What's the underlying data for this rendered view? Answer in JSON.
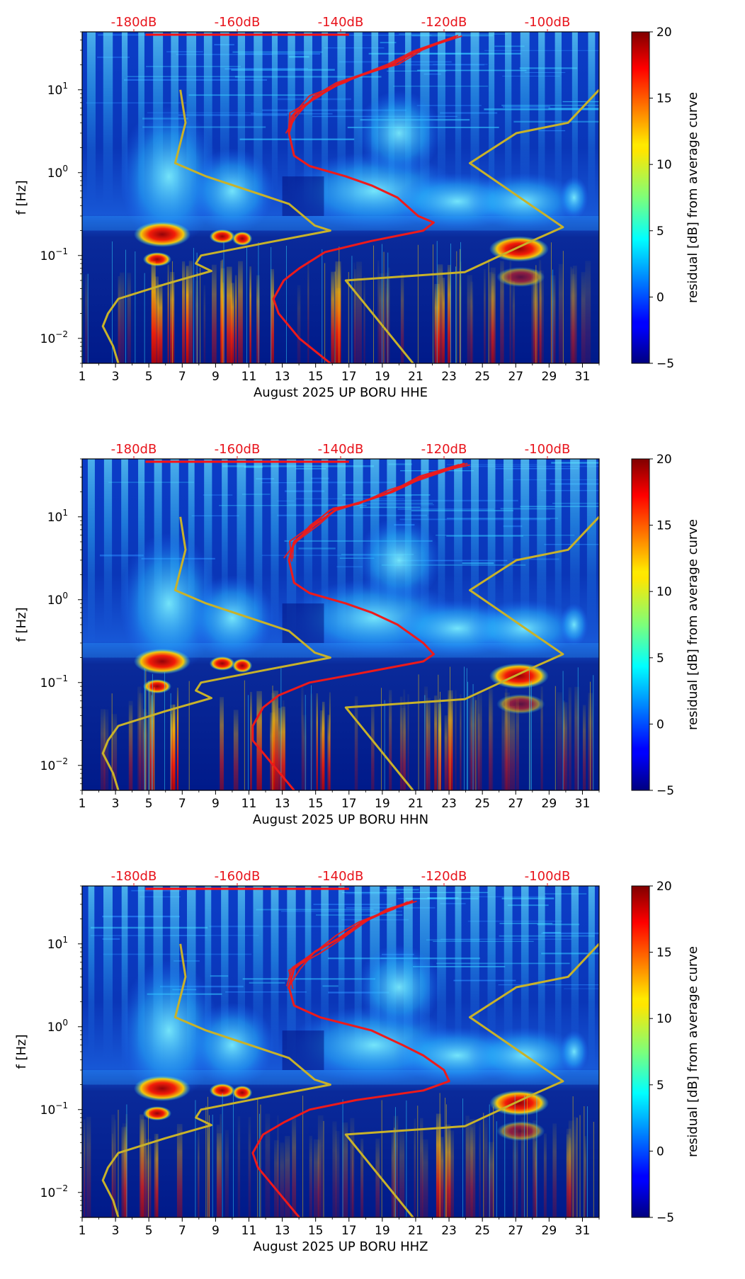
{
  "chart_data": [
    {
      "type": "heatmap",
      "title": "",
      "xlabel": "August 2025 UP BORU  HHE",
      "ylabel": "f [Hz]",
      "x_ticks": [
        "1",
        "3",
        "5",
        "7",
        "9",
        "11",
        "13",
        "15",
        "17",
        "19",
        "21",
        "23",
        "25",
        "27",
        "29",
        "31"
      ],
      "x_tick_values": [
        1,
        3,
        5,
        7,
        9,
        11,
        13,
        15,
        17,
        19,
        21,
        23,
        25,
        27,
        29,
        31
      ],
      "xlim": [
        1,
        32
      ],
      "y_scale": "log",
      "ylim": [
        0.005,
        50
      ],
      "y_ticks": [
        {
          "base": "10",
          "exp": "1",
          "value": 10
        },
        {
          "base": "10",
          "exp": "0",
          "value": 1
        },
        {
          "base": "10",
          "exp": "−1",
          "value": 0.1
        },
        {
          "base": "10",
          "exp": "−2",
          "value": 0.01
        }
      ],
      "top_db_ticks": [
        "-180dB",
        "-160dB",
        "-140dB",
        "-120dB",
        "-100dB"
      ],
      "top_db_values": [
        -180,
        -160,
        -140,
        -120,
        -100
      ],
      "top_db_range": [
        -190,
        -90
      ],
      "colorbar": {
        "label": "residual [dB] from average curve",
        "ticks": [
          "20",
          "15",
          "10",
          "5",
          "0",
          "−5"
        ],
        "tick_values": [
          20,
          15,
          10,
          5,
          0,
          -5
        ],
        "range": [
          -5,
          20
        ]
      },
      "red_curve_db": [
        [
          -117.7,
          44
        ],
        [
          -125,
          30
        ],
        [
          -130,
          20
        ],
        [
          -136,
          15
        ],
        [
          -140,
          12
        ],
        [
          -145,
          8
        ],
        [
          -149,
          5
        ],
        [
          -150,
          3
        ],
        [
          -149,
          1.6
        ],
        [
          -146,
          1.2
        ],
        [
          -139,
          0.9
        ],
        [
          -134,
          0.7
        ],
        [
          -129,
          0.5
        ],
        [
          -125,
          0.3
        ],
        [
          -122,
          0.25
        ],
        [
          -124,
          0.2
        ],
        [
          -134,
          0.15
        ],
        [
          -143,
          0.11
        ],
        [
          -148,
          0.07
        ],
        [
          -151,
          0.05
        ],
        [
          -153,
          0.03
        ],
        [
          -152,
          0.02
        ],
        [
          -148,
          0.01
        ],
        [
          -142,
          0.005
        ]
      ],
      "yellow_curve_db": [
        [
          -183,
          0.005
        ],
        [
          -184,
          0.008
        ],
        [
          -186,
          0.014
        ],
        [
          -185,
          0.02
        ],
        [
          -183,
          0.03
        ],
        [
          -174,
          0.045
        ],
        [
          -165,
          0.065
        ],
        [
          -168,
          0.08
        ],
        [
          -167,
          0.1
        ],
        [
          -155,
          0.14
        ],
        [
          -142,
          0.2
        ],
        [
          -145,
          0.23
        ],
        [
          -150,
          0.42
        ],
        [
          -166,
          0.9
        ],
        [
          -172,
          1.3
        ],
        [
          -170,
          4
        ],
        [
          -171,
          10
        ]
      ],
      "yellow_curve2_db": [
        [
          -126,
          0.005
        ],
        [
          -139,
          0.05
        ],
        [
          -116,
          0.063
        ],
        [
          -103,
          0.15
        ],
        [
          -97,
          0.22
        ],
        [
          -115,
          1.3
        ],
        [
          -106,
          3
        ],
        [
          -96,
          4
        ],
        [
          -90,
          10
        ]
      ]
    },
    {
      "type": "heatmap",
      "title": "",
      "xlabel": "August 2025 UP BORU  HHN",
      "ylabel": "f [Hz]",
      "x_ticks": [
        "1",
        "3",
        "5",
        "7",
        "9",
        "11",
        "13",
        "15",
        "17",
        "19",
        "21",
        "23",
        "25",
        "27",
        "29",
        "31"
      ],
      "x_tick_values": [
        1,
        3,
        5,
        7,
        9,
        11,
        13,
        15,
        17,
        19,
        21,
        23,
        25,
        27,
        29,
        31
      ],
      "xlim": [
        1,
        32
      ],
      "y_scale": "log",
      "ylim": [
        0.005,
        50
      ],
      "y_ticks": [
        {
          "base": "10",
          "exp": "1",
          "value": 10
        },
        {
          "base": "10",
          "exp": "0",
          "value": 1
        },
        {
          "base": "10",
          "exp": "−1",
          "value": 0.1
        },
        {
          "base": "10",
          "exp": "−2",
          "value": 0.01
        }
      ],
      "top_db_ticks": [
        "-180dB",
        "-160dB",
        "-140dB",
        "-120dB",
        "-100dB"
      ],
      "top_db_values": [
        -180,
        -160,
        -140,
        -120,
        -100
      ],
      "top_db_range": [
        -190,
        -90
      ],
      "colorbar": {
        "label": "residual [dB] from average curve",
        "ticks": [
          "20",
          "15",
          "10",
          "5",
          "0",
          "−5"
        ],
        "tick_values": [
          20,
          15,
          10,
          5,
          0,
          -5
        ],
        "range": [
          -5,
          20
        ]
      },
      "red_curve_db": [
        [
          -116,
          44
        ],
        [
          -124,
          30
        ],
        [
          -130,
          20
        ],
        [
          -136,
          15
        ],
        [
          -141,
          12
        ],
        [
          -145,
          8
        ],
        [
          -149,
          5
        ],
        [
          -150,
          3
        ],
        [
          -149,
          1.6
        ],
        [
          -146,
          1.2
        ],
        [
          -139,
          0.9
        ],
        [
          -134,
          0.7
        ],
        [
          -129,
          0.5
        ],
        [
          -124,
          0.3
        ],
        [
          -122,
          0.22
        ],
        [
          -124,
          0.18
        ],
        [
          -136,
          0.13
        ],
        [
          -146,
          0.1
        ],
        [
          -152,
          0.07
        ],
        [
          -155,
          0.05
        ],
        [
          -157,
          0.03
        ],
        [
          -157,
          0.02
        ],
        [
          -153,
          0.01
        ],
        [
          -149,
          0.005
        ]
      ],
      "yellow_curve_db": [
        [
          -183,
          0.005
        ],
        [
          -184,
          0.008
        ],
        [
          -186,
          0.014
        ],
        [
          -185,
          0.02
        ],
        [
          -183,
          0.03
        ],
        [
          -174,
          0.045
        ],
        [
          -165,
          0.065
        ],
        [
          -168,
          0.08
        ],
        [
          -167,
          0.1
        ],
        [
          -155,
          0.14
        ],
        [
          -142,
          0.2
        ],
        [
          -145,
          0.23
        ],
        [
          -150,
          0.42
        ],
        [
          -166,
          0.9
        ],
        [
          -172,
          1.3
        ],
        [
          -170,
          4
        ],
        [
          -171,
          10
        ]
      ],
      "yellow_curve2_db": [
        [
          -126,
          0.005
        ],
        [
          -139,
          0.05
        ],
        [
          -116,
          0.063
        ],
        [
          -103,
          0.15
        ],
        [
          -97,
          0.22
        ],
        [
          -115,
          1.3
        ],
        [
          -106,
          3
        ],
        [
          -96,
          4
        ],
        [
          -90,
          10
        ]
      ]
    },
    {
      "type": "heatmap",
      "title": "",
      "xlabel": "August 2025 UP BORU  HHZ",
      "ylabel": "f [Hz]",
      "x_ticks": [
        "1",
        "3",
        "5",
        "7",
        "9",
        "11",
        "13",
        "15",
        "17",
        "19",
        "21",
        "23",
        "25",
        "27",
        "29",
        "31"
      ],
      "x_tick_values": [
        1,
        3,
        5,
        7,
        9,
        11,
        13,
        15,
        17,
        19,
        21,
        23,
        25,
        27,
        29,
        31
      ],
      "xlim": [
        1,
        32
      ],
      "y_scale": "log",
      "ylim": [
        0.005,
        50
      ],
      "y_ticks": [
        {
          "base": "10",
          "exp": "1",
          "value": 10
        },
        {
          "base": "10",
          "exp": "0",
          "value": 1
        },
        {
          "base": "10",
          "exp": "−1",
          "value": 0.1
        },
        {
          "base": "10",
          "exp": "−2",
          "value": 0.01
        }
      ],
      "top_db_ticks": [
        "-180dB",
        "-160dB",
        "-140dB",
        "-120dB",
        "-100dB"
      ],
      "top_db_values": [
        -180,
        -160,
        -140,
        -120,
        -100
      ],
      "top_db_range": [
        -190,
        -90
      ],
      "colorbar": {
        "label": "residual [dB] from average curve",
        "ticks": [
          "20",
          "15",
          "10",
          "5",
          "0",
          "−5"
        ],
        "tick_values": [
          20,
          15,
          10,
          5,
          0,
          -5
        ],
        "range": [
          -5,
          20
        ]
      },
      "red_curve_db": [
        [
          -126,
          33
        ],
        [
          -131,
          25
        ],
        [
          -136,
          18
        ],
        [
          -140,
          12
        ],
        [
          -145,
          8
        ],
        [
          -149,
          5
        ],
        [
          -150,
          3
        ],
        [
          -149,
          1.8
        ],
        [
          -144,
          1.3
        ],
        [
          -134,
          0.9
        ],
        [
          -128,
          0.6
        ],
        [
          -124,
          0.45
        ],
        [
          -120,
          0.3
        ],
        [
          -119,
          0.22
        ],
        [
          -124,
          0.17
        ],
        [
          -137,
          0.13
        ],
        [
          -146,
          0.1
        ],
        [
          -151,
          0.07
        ],
        [
          -155,
          0.05
        ],
        [
          -157,
          0.03
        ],
        [
          -156,
          0.02
        ],
        [
          -152,
          0.01
        ],
        [
          -148,
          0.005
        ]
      ],
      "yellow_curve_db": [
        [
          -183,
          0.005
        ],
        [
          -184,
          0.008
        ],
        [
          -186,
          0.014
        ],
        [
          -185,
          0.02
        ],
        [
          -183,
          0.03
        ],
        [
          -174,
          0.045
        ],
        [
          -165,
          0.065
        ],
        [
          -168,
          0.08
        ],
        [
          -167,
          0.1
        ],
        [
          -155,
          0.14
        ],
        [
          -142,
          0.2
        ],
        [
          -145,
          0.23
        ],
        [
          -150,
          0.42
        ],
        [
          -166,
          0.9
        ],
        [
          -172,
          1.3
        ],
        [
          -170,
          4
        ],
        [
          -171,
          10
        ]
      ],
      "yellow_curve2_db": [
        [
          -126,
          0.005
        ],
        [
          -139,
          0.05
        ],
        [
          -116,
          0.063
        ],
        [
          -103,
          0.15
        ],
        [
          -97,
          0.22
        ],
        [
          -115,
          1.3
        ],
        [
          -106,
          3
        ],
        [
          -96,
          4
        ],
        [
          -90,
          10
        ]
      ]
    }
  ]
}
